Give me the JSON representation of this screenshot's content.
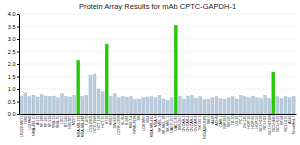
{
  "chart_data": {
    "type": "bar",
    "title": "Protein Array Results for mAb CPTC-GAPDH-1",
    "categories": [
      "LN229-MET1",
      "T98G",
      "U118MG",
      "NMA-460-10",
      "A-172",
      "SF-268",
      "SF-295",
      "SF-539",
      "SNB-19",
      "SNB-75",
      "U251",
      "BT-549",
      "HS578T",
      "MCF7",
      "MDA-MB-231",
      "MDA-MB-468",
      "T-47D",
      "COLO205",
      "HCC-2998",
      "HCT-116",
      "HCT-15",
      "HT29",
      "KM12",
      "SW-620",
      "CCRF-CEM",
      "HL-60",
      "K-562",
      "MOLT-4",
      "RPMI-8226",
      "SR",
      "LOX IMVI",
      "M14",
      "MDA-MB-435",
      "MDA-N",
      "SK-MEL-2",
      "SK-MEL-28",
      "SK-MEL-5",
      "UACC-257",
      "UACC-62",
      "IGR-OV1",
      "OVCAR-3",
      "OVCAR-4",
      "OVCAR-5",
      "OVCAR-8",
      "SK-OV-3",
      "NCI/ADR-RES",
      "786-0",
      "A498",
      "ACHN",
      "CAKI-1",
      "RXF393",
      "SN12C",
      "TK-10",
      "UO-31",
      "PC-3",
      "DU-145",
      "HOP-18",
      "HOP-62",
      "HOP-92",
      "NCI-H226",
      "NCI-H23",
      "NCI-H322M",
      "NCI-H460",
      "NCI-H522",
      "EKVX",
      "NCI-H125",
      "A549",
      "NovaMed-7"
    ],
    "values": [
      0.72,
      0.85,
      0.7,
      0.75,
      0.68,
      0.78,
      0.72,
      0.7,
      0.72,
      0.65,
      0.82,
      0.7,
      0.68,
      0.75,
      2.15,
      0.7,
      0.75,
      1.55,
      1.6,
      1.0,
      0.9,
      2.8,
      0.7,
      0.82,
      0.65,
      0.7,
      0.68,
      0.7,
      0.58,
      0.6,
      0.65,
      0.68,
      0.7,
      0.65,
      0.75,
      0.6,
      0.55,
      0.65,
      3.55,
      0.7,
      0.6,
      0.72,
      0.75,
      0.62,
      0.7,
      0.58,
      0.6,
      0.65,
      0.7,
      0.62,
      0.6,
      0.65,
      0.7,
      0.6,
      0.75,
      0.7,
      0.65,
      0.72,
      0.65,
      0.62,
      0.75,
      0.62,
      1.68,
      0.7,
      0.62,
      0.7,
      0.65,
      0.7
    ],
    "colors": [
      "#b8ccdf",
      "#b8ccdf",
      "#b8ccdf",
      "#b8ccdf",
      "#b8ccdf",
      "#b8ccdf",
      "#b8ccdf",
      "#b8ccdf",
      "#b8ccdf",
      "#b8ccdf",
      "#b8ccdf",
      "#b8ccdf",
      "#b8ccdf",
      "#b8ccdf",
      "#22cc00",
      "#b8ccdf",
      "#b8ccdf",
      "#b8ccdf",
      "#b8ccdf",
      "#b8ccdf",
      "#b8ccdf",
      "#22cc00",
      "#b8ccdf",
      "#b8ccdf",
      "#b8ccdf",
      "#b8ccdf",
      "#b8ccdf",
      "#b8ccdf",
      "#b8ccdf",
      "#b8ccdf",
      "#b8ccdf",
      "#b8ccdf",
      "#b8ccdf",
      "#b8ccdf",
      "#b8ccdf",
      "#b8ccdf",
      "#b8ccdf",
      "#b8ccdf",
      "#22cc00",
      "#b8ccdf",
      "#b8ccdf",
      "#b8ccdf",
      "#b8ccdf",
      "#b8ccdf",
      "#b8ccdf",
      "#b8ccdf",
      "#b8ccdf",
      "#b8ccdf",
      "#b8ccdf",
      "#b8ccdf",
      "#b8ccdf",
      "#b8ccdf",
      "#b8ccdf",
      "#b8ccdf",
      "#b8ccdf",
      "#b8ccdf",
      "#b8ccdf",
      "#b8ccdf",
      "#b8ccdf",
      "#b8ccdf",
      "#b8ccdf",
      "#b8ccdf",
      "#22cc00",
      "#b8ccdf",
      "#b8ccdf",
      "#b8ccdf",
      "#b8ccdf",
      "#b8ccdf"
    ],
    "ylim": [
      0.0,
      4.0
    ],
    "yticks": [
      {
        "value": 0.0,
        "label": "0.0"
      },
      0.5,
      {
        "value": 1.0,
        "label": "1.0"
      },
      1.5,
      {
        "value": 2.0,
        "label": "2.0"
      },
      2.5,
      {
        "value": 3.0,
        "label": "3.0"
      },
      3.5,
      {
        "value": 4.0,
        "label": "4.0"
      }
    ],
    "grid": true
  }
}
